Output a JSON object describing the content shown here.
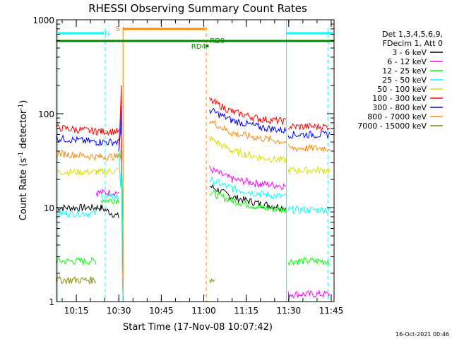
{
  "chart_data": {
    "type": "line",
    "title": "RHESSI Observing Summary Count Rates",
    "xlabel": "Start Time (17-Nov-08 10:07:42)",
    "ylabel": "Count Rate (s",
    "ylabel_sup1": "-1",
    "ylabel_mid": " detector",
    "ylabel_sup2": "-1",
    "ylabel_end": ")",
    "yscale": "log",
    "ylim": [
      1,
      1000
    ],
    "xlim_min": [
      8,
      106
    ],
    "x_ticks": [
      {
        "min": 15,
        "label": "10:15"
      },
      {
        "min": 30,
        "label": "10:30"
      },
      {
        "min": 45,
        "label": "10:45"
      },
      {
        "min": 60,
        "label": "11:00"
      },
      {
        "min": 75,
        "label": "11:15"
      },
      {
        "min": 90,
        "label": "11:30"
      },
      {
        "min": 105,
        "label": "11:45"
      }
    ],
    "y_ticks": [
      {
        "value": 1,
        "label": "1"
      },
      {
        "value": 10,
        "label": "10"
      },
      {
        "value": 100,
        "label": "100"
      },
      {
        "value": 1000,
        "label": "1000"
      }
    ],
    "legend": {
      "placement": "right",
      "header1": "Det 1,3,4,5,6,9,",
      "header2": "FDecim 1, Att 0"
    },
    "series": [
      {
        "name": "3 - 6 keV",
        "color": "#000000",
        "segments": [
          [
            [
              8,
              10
            ],
            [
              22,
              10
            ],
            [
              23.7,
              10
            ],
            [
              30,
              8
            ]
          ],
          [
            [
              62,
              17
            ],
            [
              70,
              13
            ],
            [
              80,
              11
            ],
            [
              89,
              10
            ]
          ]
        ]
      },
      {
        "name": "6 - 12 keV",
        "color": "#ff00ff",
        "segments": [
          [
            [
              22,
              14.5
            ],
            [
              30,
              14.5
            ]
          ],
          [
            [
              62,
              26
            ],
            [
              70,
              20
            ],
            [
              80,
              18
            ],
            [
              89,
              17
            ]
          ],
          [
            [
              89.8,
              1.2
            ],
            [
              104.5,
              1.2
            ]
          ]
        ]
      },
      {
        "name": "12 - 25 keV",
        "color": "#00ff00",
        "segments": [
          [
            [
              8,
              2.7
            ],
            [
              22,
              2.7
            ]
          ],
          [
            [
              23.7,
              12
            ],
            [
              30,
              12
            ]
          ],
          [
            [
              62,
              14.5
            ],
            [
              70,
              12
            ],
            [
              80,
              10
            ],
            [
              89,
              9.5
            ]
          ],
          [
            [
              89.8,
              2.7
            ],
            [
              104.5,
              2.7
            ]
          ]
        ]
      },
      {
        "name": "25 - 50 keV",
        "color": "#00ffff",
        "segments": [
          [
            [
              8,
              8.7
            ],
            [
              22,
              8.7
            ]
          ],
          [
            [
              23.7,
              13
            ],
            [
              30,
              13
            ]
          ],
          [
            [
              62,
              20
            ],
            [
              70,
              16
            ],
            [
              80,
              14
            ],
            [
              89,
              13
            ]
          ],
          [
            [
              89.8,
              9.5
            ],
            [
              104.5,
              9.5
            ]
          ]
        ]
      },
      {
        "name": "50 - 100 keV",
        "color": "#dddd00",
        "segments": [
          [
            [
              8,
              24
            ],
            [
              22,
              24
            ],
            [
              23.7,
              24
            ],
            [
              30,
              25
            ]
          ],
          [
            [
              62,
              55
            ],
            [
              70,
              40
            ],
            [
              80,
              34
            ],
            [
              89,
              32
            ]
          ],
          [
            [
              89.8,
              25
            ],
            [
              104.5,
              25
            ]
          ]
        ]
      },
      {
        "name": "100 - 300 keV",
        "color": "#ff0000",
        "segments": [
          [
            [
              8,
              71
            ],
            [
              22,
              65
            ],
            [
              23.7,
              65
            ],
            [
              30,
              65
            ]
          ],
          [
            [
              62,
              140
            ],
            [
              70,
              105
            ],
            [
              80,
              88
            ],
            [
              89,
              83
            ]
          ],
          [
            [
              89.8,
              73
            ],
            [
              104.5,
              73
            ]
          ]
        ]
      },
      {
        "name": "300 - 800 keV",
        "color": "#0000ff",
        "segments": [
          [
            [
              8,
              55
            ],
            [
              22,
              50
            ],
            [
              23.7,
              50
            ],
            [
              30,
              50
            ]
          ],
          [
            [
              62,
              110
            ],
            [
              70,
              85
            ],
            [
              80,
              72
            ],
            [
              89,
              66
            ]
          ],
          [
            [
              89.8,
              60
            ],
            [
              104.5,
              60
            ]
          ]
        ]
      },
      {
        "name": "800 - 7000 keV",
        "color": "#ff8800",
        "segments": [
          [
            [
              8,
              38
            ],
            [
              22,
              35
            ],
            [
              23.7,
              35
            ],
            [
              30,
              35
            ]
          ],
          [
            [
              62,
              85
            ],
            [
              70,
              62
            ],
            [
              80,
              55
            ],
            [
              89,
              50
            ]
          ],
          [
            [
              89.8,
              43
            ],
            [
              104.5,
              43
            ]
          ]
        ]
      },
      {
        "name": "7000 - 15000 keV",
        "color": "#888800",
        "segments": [
          [
            [
              8,
              1.7
            ],
            [
              22,
              1.7
            ]
          ],
          [
            [
              62,
              1.7
            ],
            [
              64,
              1.7
            ]
          ]
        ]
      }
    ],
    "annotations": [
      {
        "id": "N",
        "label": "N",
        "color": "#00ffff"
      },
      {
        "id": "S",
        "label": "S",
        "color": "#ff8800"
      },
      {
        "id": "RD4",
        "label": "RD4",
        "color": "#008800"
      },
      {
        "id": "RD0",
        "label": "RD0",
        "color": "#008800"
      }
    ],
    "footer_timestamp": "16-Oct-2021 00:46"
  }
}
